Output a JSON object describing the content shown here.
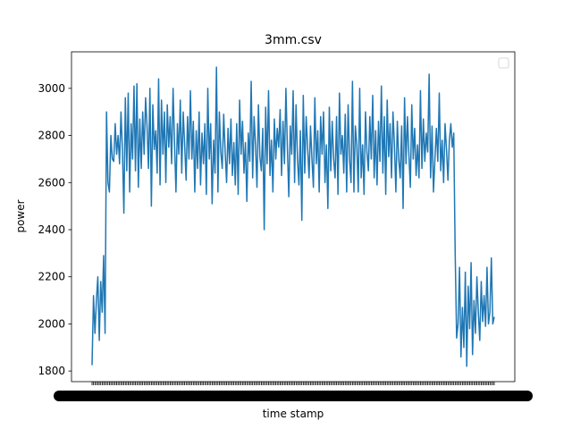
{
  "chart_data": {
    "type": "line",
    "title": "3mm.csv",
    "xlabel": "time stamp",
    "ylabel": "power",
    "ylim": [
      1755,
      3155
    ],
    "yticks": [
      1800,
      2000,
      2200,
      2400,
      2600,
      2800,
      3000
    ],
    "ytick_labels": [
      "1800",
      "2000",
      "2200",
      "2400",
      "2600",
      "2800",
      "3000"
    ],
    "legend": {
      "placement": "top-right",
      "entries": []
    },
    "grid": false,
    "series": [
      {
        "color": "#1f77b4",
        "values": [
          1825,
          2120,
          1960,
          2100,
          2200,
          1930,
          2180,
          2050,
          2290,
          1960,
          2900,
          2600,
          2560,
          2800,
          2700,
          2690,
          2850,
          2720,
          2800,
          2680,
          2900,
          2740,
          2470,
          2960,
          2650,
          2980,
          2560,
          2850,
          2700,
          3010,
          2650,
          3020,
          2580,
          2870,
          2660,
          2900,
          2720,
          2960,
          2840,
          2660,
          3000,
          2500,
          2930,
          2740,
          2820,
          2640,
          3040,
          2590,
          2950,
          2720,
          2900,
          2600,
          2930,
          2750,
          2880,
          2680,
          3000,
          2770,
          2560,
          2850,
          2720,
          2950,
          2640,
          2900,
          2760,
          2610,
          2880,
          2700,
          2990,
          2700,
          2860,
          2560,
          2820,
          2660,
          2900,
          2590,
          2810,
          2680,
          2850,
          2550,
          3000,
          2700,
          2850,
          2510,
          2780,
          2640,
          3090,
          2560,
          2900,
          2730,
          2660,
          2890,
          2730,
          2600,
          2830,
          2680,
          2870,
          2630,
          2770,
          2590,
          2850,
          2550,
          2950,
          2720,
          2860,
          2640,
          2770,
          2520,
          2810,
          2690,
          3030,
          2620,
          2880,
          2760,
          2580,
          2930,
          2710,
          2650,
          2830,
          2400,
          2920,
          2680,
          2990,
          2630,
          2780,
          2560,
          2870,
          2700,
          2830,
          2750,
          2910,
          2630,
          2860,
          2680,
          3000,
          2750,
          2540,
          2840,
          2720,
          2990,
          2600,
          2930,
          2700,
          2590,
          2820,
          2440,
          2970,
          2640,
          2880,
          2750,
          2620,
          2840,
          2700,
          2580,
          2960,
          2680,
          2820,
          2560,
          2880,
          2720,
          2900,
          2600,
          2760,
          2490,
          2920,
          2650,
          2860,
          2700,
          2620,
          2880,
          2550,
          2980,
          2720,
          2800,
          2640,
          2890,
          2560,
          2930,
          2700,
          2600,
          3030,
          2560,
          2840,
          2760,
          2560,
          3000,
          2620,
          2760,
          2550,
          2900,
          2730,
          2650,
          2880,
          2700,
          2970,
          2620,
          2820,
          2590,
          2860,
          2690,
          3010,
          2640,
          2880,
          2550,
          2950,
          2710,
          2850,
          2620,
          2900,
          2760,
          2560,
          2860,
          2700,
          2620,
          2840,
          2490,
          2960,
          2680,
          2880,
          2720,
          2580,
          2930,
          2700,
          2830,
          2630,
          2760,
          2620,
          2990,
          2660,
          2870,
          2690,
          2810,
          2730,
          3060,
          2620,
          2840,
          2560,
          2700,
          2830,
          2690,
          2980,
          2650,
          2780,
          2600,
          2850,
          2740,
          2610,
          2780,
          2850,
          2750,
          2810,
          2300,
          1940,
          2000,
          2240,
          1860,
          2070,
          1900,
          2220,
          1820,
          2160,
          1980,
          2260,
          1870,
          2100,
          1960,
          2200,
          2050,
          1930,
          2180,
          2010,
          2120,
          1990,
          2240,
          2000,
          2050,
          2280,
          2000,
          2030
        ]
      }
    ]
  }
}
